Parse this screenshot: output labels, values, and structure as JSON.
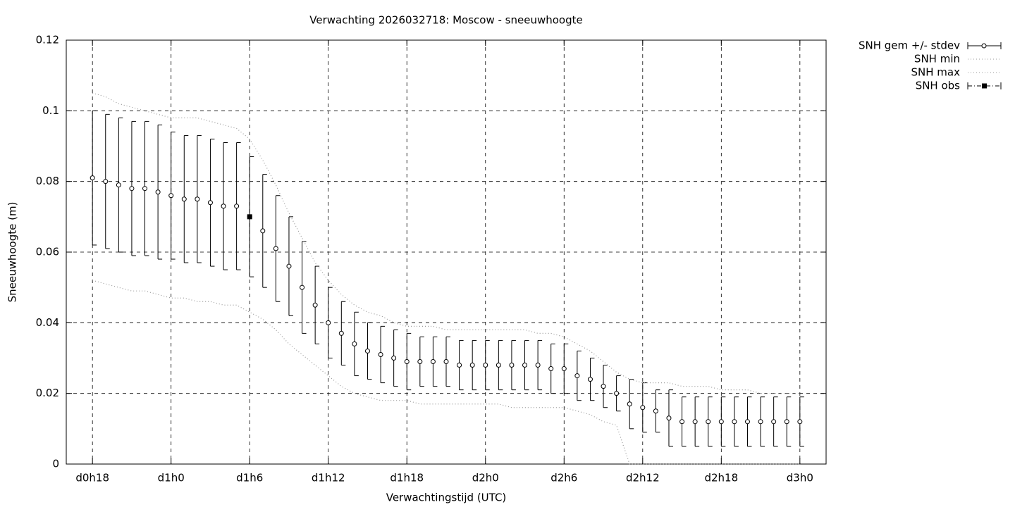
{
  "chart_data": {
    "type": "errorbar",
    "title": "Verwachting 2026032718: Moscow - sneeuwhoogte",
    "x_label": "Verwachtingstijd (UTC)",
    "y_label": "Sneeuwhoogte (m)",
    "x": [
      18,
      19,
      20,
      21,
      22,
      23,
      24,
      25,
      26,
      27,
      28,
      29,
      30,
      31,
      32,
      33,
      34,
      35,
      36,
      37,
      38,
      39,
      40,
      41,
      42,
      43,
      44,
      45,
      46,
      47,
      48,
      49,
      50,
      51,
      52,
      53,
      54,
      55,
      56,
      57,
      58,
      59,
      60,
      61,
      62,
      63,
      64,
      65,
      66,
      67,
      68,
      69,
      70,
      71,
      72
    ],
    "series": [
      {
        "name": "SNH gem +/- stdev",
        "color": "#000000",
        "style": "errorbars",
        "values": [
          0.081,
          0.08,
          0.079,
          0.078,
          0.078,
          0.077,
          0.076,
          0.075,
          0.075,
          0.074,
          0.073,
          0.073,
          0.07,
          0.066,
          0.061,
          0.056,
          0.05,
          0.045,
          0.04,
          0.037,
          0.034,
          0.032,
          0.031,
          0.03,
          0.029,
          0.029,
          0.029,
          0.029,
          0.028,
          0.028,
          0.028,
          0.028,
          0.028,
          0.028,
          0.028,
          0.027,
          0.027,
          0.025,
          0.024,
          0.022,
          0.02,
          0.017,
          0.016,
          0.015,
          0.013,
          0.012,
          0.012,
          0.012,
          0.012,
          0.012,
          0.012,
          0.012,
          0.012,
          0.012,
          0.012
        ],
        "errors": [
          0.019,
          0.019,
          0.019,
          0.019,
          0.019,
          0.019,
          0.018,
          0.018,
          0.018,
          0.018,
          0.018,
          0.018,
          0.017,
          0.016,
          0.015,
          0.014,
          0.013,
          0.011,
          0.01,
          0.009,
          0.009,
          0.008,
          0.008,
          0.008,
          0.008,
          0.007,
          0.007,
          0.007,
          0.007,
          0.007,
          0.007,
          0.007,
          0.007,
          0.007,
          0.007,
          0.007,
          0.007,
          0.007,
          0.006,
          0.006,
          0.005,
          0.007,
          0.007,
          0.006,
          0.008,
          0.007,
          0.007,
          0.007,
          0.007,
          0.007,
          0.007,
          0.007,
          0.007,
          0.007,
          0.007
        ]
      },
      {
        "name": "SNH min",
        "color": "#999999",
        "style": "dotted",
        "values": [
          0.052,
          0.051,
          0.05,
          0.049,
          0.049,
          0.048,
          0.047,
          0.047,
          0.046,
          0.046,
          0.045,
          0.045,
          0.043,
          0.041,
          0.038,
          0.034,
          0.031,
          0.028,
          0.025,
          0.022,
          0.02,
          0.019,
          0.018,
          0.018,
          0.018,
          0.017,
          0.017,
          0.017,
          0.017,
          0.017,
          0.017,
          0.017,
          0.016,
          0.016,
          0.016,
          0.016,
          0.016,
          0.015,
          0.014,
          0.012,
          0.011,
          0,
          0,
          0,
          0,
          0,
          0,
          0,
          0,
          0,
          0,
          0,
          0,
          0,
          0
        ]
      },
      {
        "name": "SNH max",
        "color": "#999999",
        "style": "dotted",
        "values": [
          0.105,
          0.104,
          0.102,
          0.101,
          0.1,
          0.099,
          0.098,
          0.098,
          0.098,
          0.097,
          0.096,
          0.095,
          0.092,
          0.086,
          0.079,
          0.071,
          0.064,
          0.057,
          0.052,
          0.048,
          0.045,
          0.043,
          0.042,
          0.04,
          0.039,
          0.039,
          0.039,
          0.038,
          0.038,
          0.038,
          0.038,
          0.038,
          0.038,
          0.038,
          0.037,
          0.037,
          0.036,
          0.034,
          0.032,
          0.029,
          0.026,
          0.024,
          0.023,
          0.023,
          0.023,
          0.022,
          0.022,
          0.022,
          0.021,
          0.021,
          0.021,
          0.02,
          0.02,
          0.02,
          0.02
        ]
      },
      {
        "name": "SNH obs",
        "color": "#000000",
        "style": "dashdot",
        "x": [
          30
        ],
        "values": [
          0.07
        ]
      }
    ],
    "xlim": [
      16,
      74
    ],
    "xticks": [
      {
        "value": 18,
        "label": "d0h18"
      },
      {
        "value": 24,
        "label": "d1h0"
      },
      {
        "value": 30,
        "label": "d1h6"
      },
      {
        "value": 36,
        "label": "d1h12"
      },
      {
        "value": 42,
        "label": "d1h18"
      },
      {
        "value": 48,
        "label": "d2h0"
      },
      {
        "value": 54,
        "label": "d2h6"
      },
      {
        "value": 60,
        "label": "d2h12"
      },
      {
        "value": 66,
        "label": "d2h18"
      },
      {
        "value": 72,
        "label": "d3h0"
      }
    ],
    "ylim": [
      0,
      0.12
    ],
    "yticks": [
      0,
      0.02,
      0.04,
      0.06,
      0.08,
      0.1,
      0.12
    ],
    "grid": true,
    "legend": "outside-top-right"
  }
}
